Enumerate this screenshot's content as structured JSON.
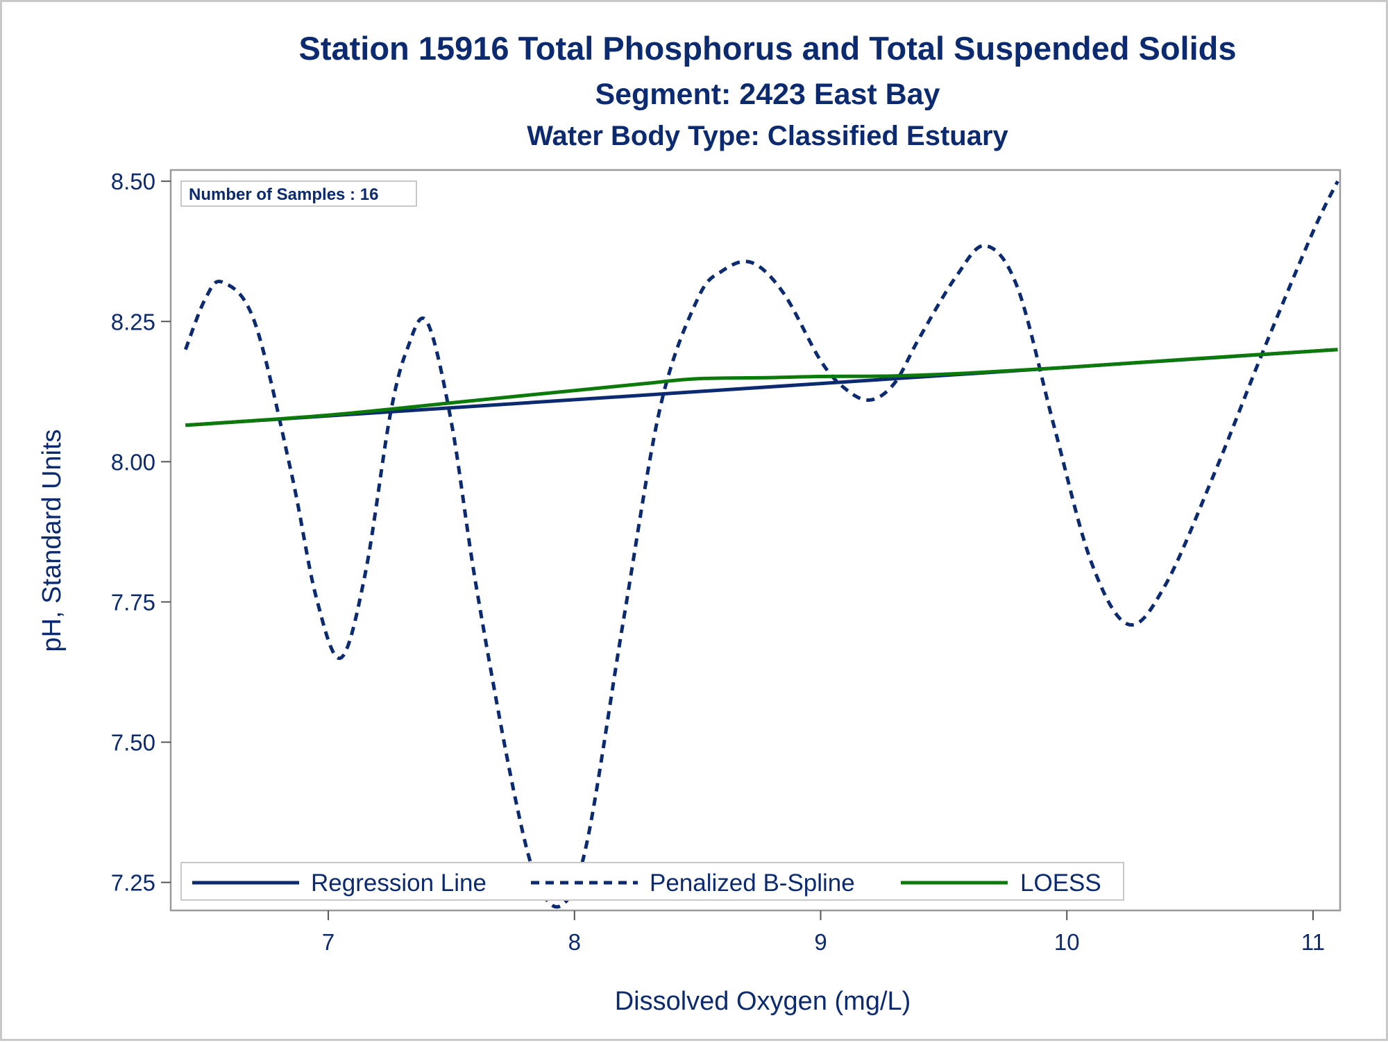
{
  "chart_data": {
    "type": "line",
    "title": "Station 15916  Total Phosphorus and Total Suspended Solids",
    "subtitle": "Segment: 2423  East Bay",
    "subtitle2": "Water Body Type: Classified Estuary",
    "xlabel": "Dissolved Oxygen (mg/L)",
    "ylabel": "pH, Standard Units",
    "xlim": [
      6.36,
      11.11
    ],
    "ylim": [
      7.2,
      8.52
    ],
    "xticks": [
      7,
      8,
      9,
      10,
      11
    ],
    "xtick_labels": [
      "7",
      "8",
      "9",
      "10",
      "11"
    ],
    "yticks": [
      7.25,
      7.5,
      7.75,
      8.0,
      8.25,
      8.5
    ],
    "ytick_labels": [
      "7.25",
      "7.50",
      "7.75",
      "8.00",
      "8.25",
      "8.50"
    ],
    "grid": false,
    "annotation": "Number of Samples : 16",
    "legend_position": "bottom-left inside",
    "series": [
      {
        "name": "Regression Line",
        "style": "solid",
        "color": "#0b2a6f",
        "x": [
          6.42,
          11.1
        ],
        "y": [
          8.065,
          8.2
        ]
      },
      {
        "name": "Penalized B-Spline",
        "style": "dashed",
        "color": "#0b2a6f",
        "x": [
          6.42,
          6.5,
          6.57,
          6.7,
          6.85,
          6.95,
          7.05,
          7.15,
          7.25,
          7.32,
          7.4,
          7.5,
          7.6,
          7.75,
          7.85,
          7.95,
          8.05,
          8.2,
          8.35,
          8.5,
          8.6,
          8.72,
          8.85,
          9.0,
          9.1,
          9.2,
          9.3,
          9.4,
          9.55,
          9.67,
          9.8,
          9.95,
          10.1,
          10.25,
          10.4,
          10.6,
          10.8,
          11.0,
          11.1
        ],
        "y": [
          8.2,
          8.29,
          8.32,
          8.25,
          7.98,
          7.76,
          7.65,
          7.8,
          8.08,
          8.2,
          8.25,
          8.07,
          7.78,
          7.42,
          7.25,
          7.21,
          7.32,
          7.72,
          8.1,
          8.29,
          8.34,
          8.355,
          8.3,
          8.18,
          8.13,
          8.11,
          8.14,
          8.22,
          8.33,
          8.385,
          8.31,
          8.06,
          7.82,
          7.71,
          7.78,
          7.98,
          8.2,
          8.41,
          8.5
        ]
      },
      {
        "name": "LOESS",
        "style": "solid",
        "color": "#0b7a0b",
        "x": [
          6.42,
          7.0,
          7.5,
          8.0,
          8.3,
          8.5,
          8.8,
          9.0,
          9.3,
          9.6,
          10.0,
          10.5,
          11.1
        ],
        "y": [
          8.065,
          8.083,
          8.105,
          8.127,
          8.14,
          8.148,
          8.15,
          8.152,
          8.153,
          8.158,
          8.168,
          8.183,
          8.2
        ]
      }
    ]
  }
}
